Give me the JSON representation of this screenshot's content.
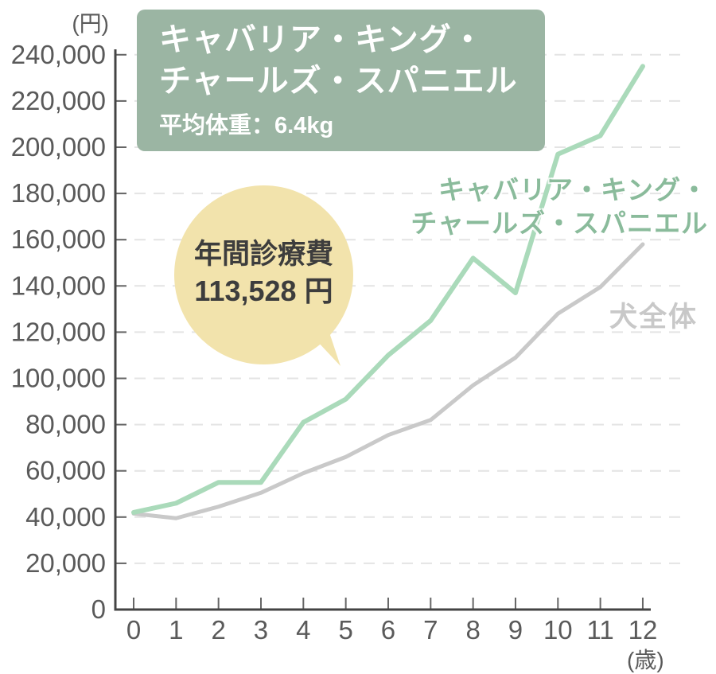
{
  "header": {
    "breed_title_line1": "キャバリア・キング・",
    "breed_title_line2": "チャールズ・スパニエル",
    "avg_weight": "平均体重：6.4kg",
    "bg_color": "#9bb5a3",
    "text_color": "#ffffff"
  },
  "callout": {
    "line1": "年間診療費",
    "line2": "113,528 円",
    "bg_color": "#f2e3ac",
    "text_color": "#3d3d3d"
  },
  "chart_data": {
    "type": "line",
    "title": "キャバリア・キング・チャールズ・スパニエル 年間診療費の推移",
    "xlabel": "(歳)",
    "ylabel": "(円)",
    "x": [
      0,
      1,
      2,
      3,
      4,
      5,
      6,
      7,
      8,
      9,
      10,
      11,
      12
    ],
    "xtick_labels": [
      "0",
      "1",
      "2",
      "3",
      "4",
      "5",
      "6",
      "7",
      "8",
      "9",
      "10",
      "11",
      "12"
    ],
    "ylim": [
      0,
      240000
    ],
    "ytick_values": [
      0,
      20000,
      40000,
      60000,
      80000,
      100000,
      120000,
      140000,
      160000,
      180000,
      200000,
      220000,
      240000
    ],
    "ytick_labels": [
      "0",
      "20,000",
      "40,000",
      "60,000",
      "80,000",
      "100,000",
      "120,000",
      "140,000",
      "160,000",
      "180,000",
      "200,000",
      "220,000",
      "240,000"
    ],
    "grid": "horizontal-dashed",
    "grid_color": "#e4e4e4",
    "axis_color": "#444444",
    "tick_color": "#666666",
    "label_color": "#5a5a5a",
    "series": [
      {
        "id": "cavalier",
        "name": "キャバリア・キング・チャールズ・スパニエル",
        "color": "#aadaba",
        "values": [
          42000,
          46000,
          55000,
          55000,
          81000,
          91000,
          110000,
          125000,
          152000,
          137000,
          197000,
          205000,
          235000
        ]
      },
      {
        "id": "all-dogs",
        "name": "犬全体",
        "color": "#c9c9c9",
        "values": [
          41500,
          39500,
          44500,
          50500,
          59000,
          66000,
          75500,
          82000,
          97000,
          109000,
          128000,
          139500,
          158000
        ]
      }
    ],
    "legend": {
      "cavalier_line1": "キャバリア・キング・",
      "cavalier_line2": "チャールズ・スパニエル",
      "cavalier_color": "#8abb9b",
      "all_dogs": "犬全体",
      "all_dogs_color": "#c8c8c8",
      "position": "inline-right"
    }
  }
}
